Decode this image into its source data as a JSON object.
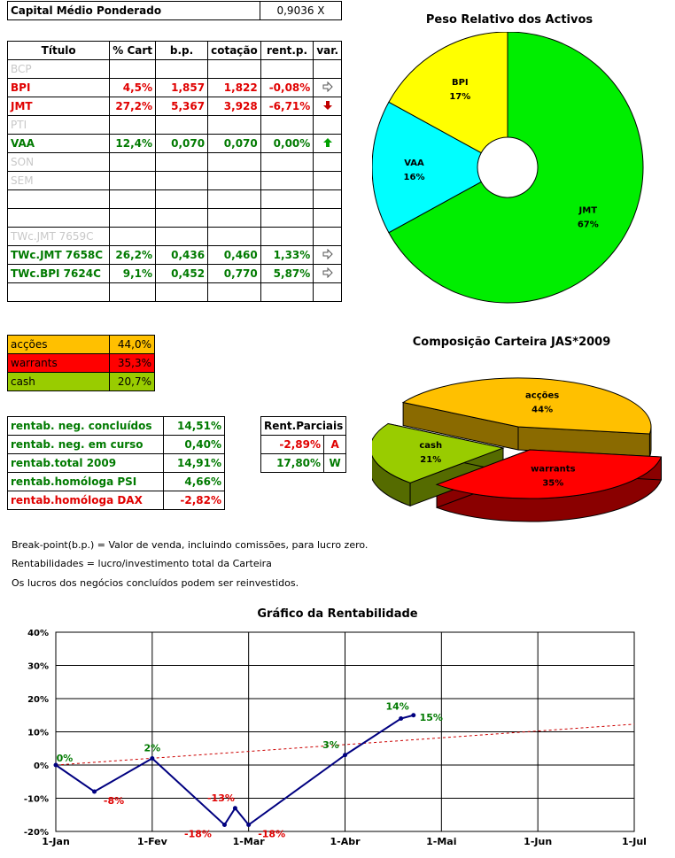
{
  "capital": {
    "label": "Capital Médio Ponderado",
    "value": "0,9036 X"
  },
  "assets_table": {
    "headers": [
      "Título",
      "% Cart",
      "b.p.",
      "cotação",
      "rent.p.",
      "var."
    ],
    "rows": [
      {
        "titulo": "BCP",
        "cart": "",
        "bp": "",
        "cot": "",
        "rent": "",
        "var": "",
        "style": "muted"
      },
      {
        "titulo": "BPI",
        "cart": "4,5%",
        "bp": "1,857",
        "cot": "1,822",
        "rent": "-0,08%",
        "var": "right",
        "style": "red"
      },
      {
        "titulo": "JMT",
        "cart": "27,2%",
        "bp": "5,367",
        "cot": "3,928",
        "rent": "-6,71%",
        "var": "down",
        "style": "red"
      },
      {
        "titulo": "PTI",
        "cart": "",
        "bp": "",
        "cot": "",
        "rent": "",
        "var": "",
        "style": "muted"
      },
      {
        "titulo": "VAA",
        "cart": "12,4%",
        "bp": "0,070",
        "cot": "0,070",
        "rent": "0,00%",
        "var": "up",
        "style": "green"
      },
      {
        "titulo": "SON",
        "cart": "",
        "bp": "",
        "cot": "",
        "rent": "",
        "var": "",
        "style": "muted"
      },
      {
        "titulo": "SEM",
        "cart": "",
        "bp": "",
        "cot": "",
        "rent": "",
        "var": "",
        "style": "muted"
      },
      {
        "titulo": "",
        "cart": "",
        "bp": "",
        "cot": "",
        "rent": "",
        "var": "",
        "style": "muted"
      },
      {
        "titulo": "",
        "cart": "",
        "bp": "",
        "cot": "",
        "rent": "",
        "var": "",
        "style": "muted"
      },
      {
        "titulo": "TWc.JMT 7659C",
        "cart": "",
        "bp": "",
        "cot": "",
        "rent": "",
        "var": "",
        "style": "muted"
      },
      {
        "titulo": "TWc.JMT 7658C",
        "cart": "26,2%",
        "bp": "0,436",
        "cot": "0,460",
        "rent": "1,33%",
        "var": "right",
        "style": "green"
      },
      {
        "titulo": "TWc.BPI 7624C",
        "cart": "9,1%",
        "bp": "0,452",
        "cot": "0,770",
        "rent": "5,87%",
        "var": "right",
        "style": "green"
      },
      {
        "titulo": "",
        "cart": "",
        "bp": "",
        "cot": "",
        "rent": "",
        "var": "",
        "style": "muted"
      }
    ]
  },
  "composition_table": [
    {
      "label": "acções",
      "value": "44,0%",
      "color": "#ffc000",
      "text": "#000000"
    },
    {
      "label": "warrants",
      "value": "35,3%",
      "color": "#ff0000",
      "text": "#000000"
    },
    {
      "label": "cash",
      "value": "20,7%",
      "color": "#99cc00",
      "text": "#000000"
    }
  ],
  "returns_table": [
    {
      "label": "rentab. neg. concluídos",
      "value": "14,51%",
      "style": "green"
    },
    {
      "label": "rentab. neg. em curso",
      "value": "0,40%",
      "style": "green"
    },
    {
      "label": "rentab.total 2009",
      "value": "14,91%",
      "style": "green"
    },
    {
      "label": "rentab.homóloga PSI",
      "value": "4,66%",
      "style": "green"
    },
    {
      "label": "rentab.homóloga DAX",
      "value": "-2,82%",
      "style": "red"
    }
  ],
  "partials_table": {
    "header": "Rent.Parciais",
    "rows": [
      {
        "value": "-2,89%",
        "code": "A",
        "style": "red"
      },
      {
        "value": "17,80%",
        "code": "W",
        "style": "green"
      }
    ]
  },
  "notes": [
    "Break-point(b.p.) = Valor de venda, incluindo comissões, para lucro zero.",
    "Rentabilidades = lucro/investimento total da Carteira",
    "Os lucros dos negócios concluídos podem ser reinvestidos."
  ],
  "icons": {
    "right": "arrow-right-icon",
    "down": "arrow-down-icon",
    "up": "arrow-up-icon"
  },
  "chart_data": [
    {
      "type": "pie",
      "variant": "doughnut",
      "title": "Peso Relativo dos Activos",
      "slices": [
        {
          "label": "JMT",
          "value": 67,
          "display": "67%",
          "color": "#00ee00"
        },
        {
          "label": "VAA",
          "value": 16,
          "display": "16%",
          "color": "#00ffff"
        },
        {
          "label": "BPI",
          "value": 17,
          "display": "17%",
          "color": "#ffff00"
        }
      ]
    },
    {
      "type": "pie",
      "variant": "3d-exploded",
      "title": "Composição Carteira JAS*2009",
      "slices": [
        {
          "label": "acções",
          "value": 44,
          "display": "44%",
          "color": "#ffc000",
          "side": "#8a6a00"
        },
        {
          "label": "warrants",
          "value": 35,
          "display": "35%",
          "color": "#ff0000",
          "side": "#8a0000"
        },
        {
          "label": "cash",
          "value": 21,
          "display": "21%",
          "color": "#99cc00",
          "side": "#556b00"
        }
      ]
    },
    {
      "type": "line",
      "title": "Gráfico da Rentabilidade",
      "x_ticks": [
        "1-Jan",
        "1-Fev",
        "1-Mar",
        "1-Abr",
        "1-Mai",
        "1-Jun",
        "1-Jul"
      ],
      "y_ticks": [
        "-20%",
        "-10%",
        "0%",
        "10%",
        "20%",
        "30%",
        "40%"
      ],
      "ylim": [
        -20,
        40
      ],
      "grid": true,
      "series": [
        {
          "style": "solid-marker",
          "color": "#000080",
          "points": [
            {
              "x": 0,
              "y": 0,
              "label": "0%",
              "labelColor": "#007a00"
            },
            {
              "x": 0.4,
              "y": -8,
              "label": "-8%",
              "labelColor": "#e00000"
            },
            {
              "x": 1,
              "y": 2,
              "label": "2%",
              "labelColor": "#007a00"
            },
            {
              "x": 1.75,
              "y": -18,
              "label": "-18%",
              "labelColor": "#e00000"
            },
            {
              "x": 1.86,
              "y": -13,
              "label": "-13%",
              "labelColor": "#e00000"
            },
            {
              "x": 2,
              "y": -18,
              "label": "-18%",
              "labelColor": "#e00000"
            },
            {
              "x": 3,
              "y": 3,
              "label": "3%",
              "labelColor": "#007a00"
            },
            {
              "x": 3.58,
              "y": 14,
              "label": "14%",
              "labelColor": "#007a00"
            },
            {
              "x": 3.71,
              "y": 15,
              "label": "15%",
              "labelColor": "#007a00"
            }
          ]
        },
        {
          "style": "dashed-trend",
          "color": "#cc0000",
          "points": [
            {
              "x": 0,
              "y": 0
            },
            {
              "x": 6,
              "y": 12.3
            }
          ]
        }
      ]
    }
  ]
}
